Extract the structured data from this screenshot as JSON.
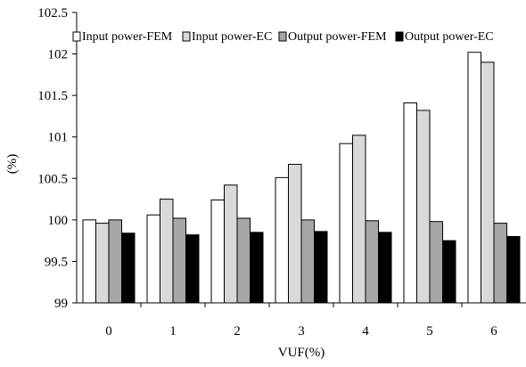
{
  "chart_data": {
    "type": "bar",
    "title": "",
    "xlabel": "VUF(%)",
    "ylabel": "(%)",
    "categories": [
      "0",
      "1",
      "2",
      "3",
      "4",
      "5",
      "6"
    ],
    "ylim": [
      99,
      102.5
    ],
    "yticks": [
      "99",
      "99.5",
      "100",
      "100.5",
      "101",
      "101.5",
      "102",
      "102.5"
    ],
    "grid": false,
    "legend_position": "top",
    "series": [
      {
        "name": "Input power-FEM",
        "color": "#ffffff",
        "values": [
          100.0,
          100.06,
          100.24,
          100.51,
          100.92,
          101.41,
          102.02
        ]
      },
      {
        "name": "Input power-EC",
        "color": "#d9d9d9",
        "values": [
          99.96,
          100.25,
          100.42,
          100.67,
          101.02,
          101.32,
          101.9
        ]
      },
      {
        "name": "Output power-FEM",
        "color": "#a6a6a6",
        "values": [
          100.0,
          100.02,
          100.02,
          100.0,
          99.99,
          99.98,
          99.96
        ]
      },
      {
        "name": "Output power-EC",
        "color": "#000000",
        "values": [
          99.84,
          99.82,
          99.85,
          99.86,
          99.85,
          99.75,
          99.8
        ]
      }
    ]
  }
}
